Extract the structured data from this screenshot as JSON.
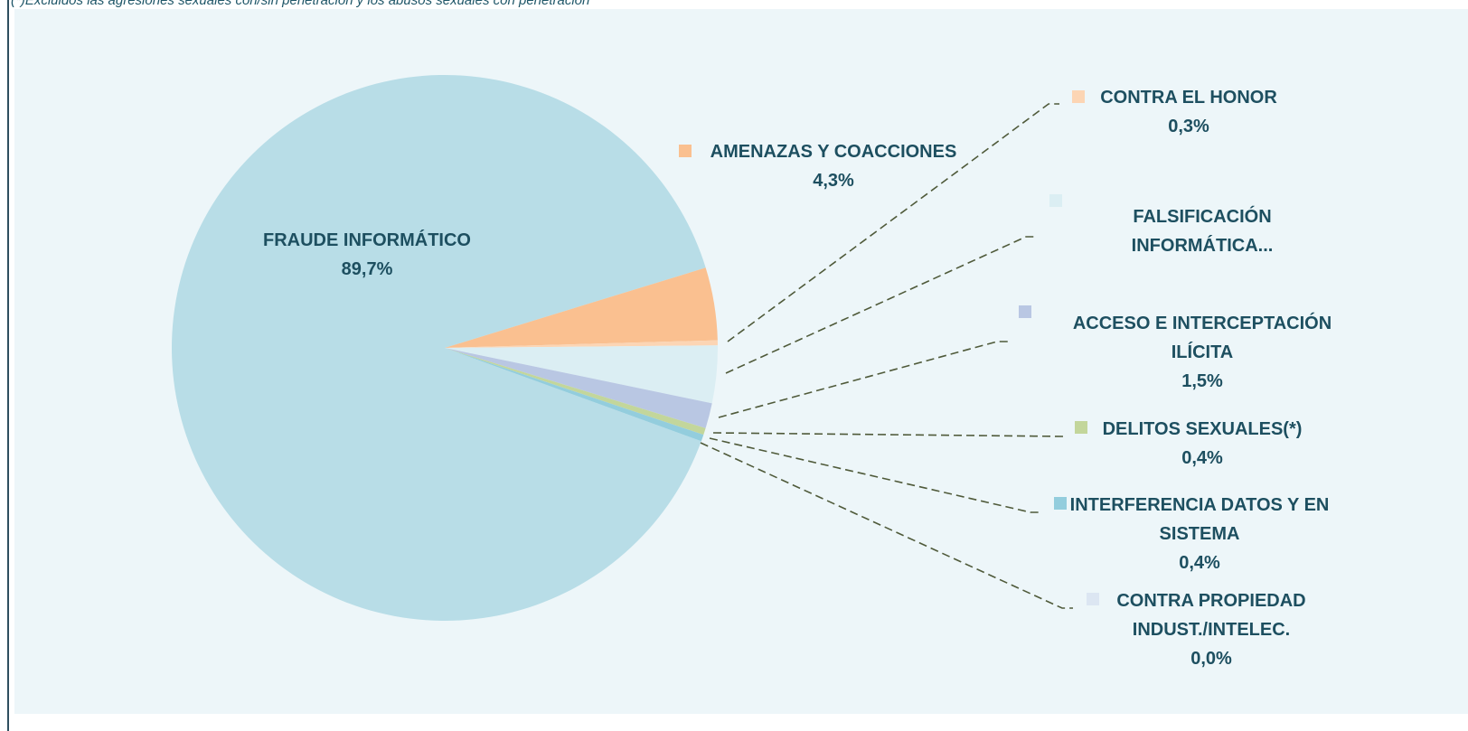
{
  "chart_data": {
    "type": "pie",
    "note": "(*)Excluidos las agresiones sexuales con/sin penetración y los abusos sexuales con penetración",
    "categories": [
      "FRAUDE INFORMÁTICO",
      "AMENAZAS Y COACCIONES",
      "CONTRA EL HONOR",
      "FALSIFICACIÓN INFORMÁTICA...",
      "ACCESO  E INTERCEPTACIÓN ILÍCITA",
      "DELITOS SEXUALES(*)",
      "INTERFERENCIA DATOS Y EN SISTEMA",
      "CONTRA PROPIEDAD INDUST./INTELEC."
    ],
    "values": [
      89.7,
      4.3,
      0.3,
      3.4,
      1.5,
      0.4,
      0.4,
      0.0
    ],
    "value_labels": [
      "89,7%",
      "4,3%",
      "0,3%",
      null,
      "1,5%",
      "0,4%",
      "0,4%",
      "0,0%"
    ],
    "colors": [
      "#b8dde7",
      "#fac090",
      "#fcd5b4",
      "#dbeef3",
      "#b9c7e3",
      "#c3d69b",
      "#93cddd",
      "#dce6f2"
    ]
  }
}
